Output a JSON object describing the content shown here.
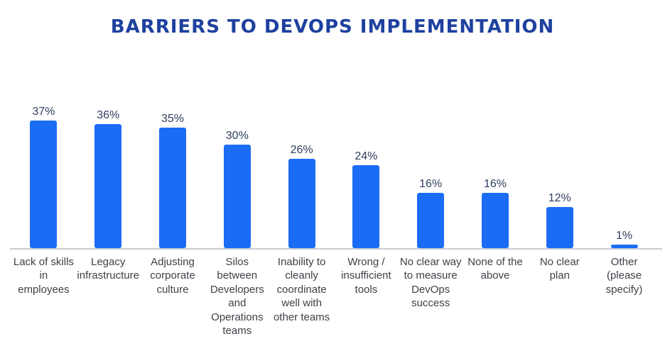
{
  "chart_data": {
    "type": "bar",
    "title": "BARRIERS TO DEVOPS IMPLEMENTATION",
    "categories": [
      "Lack of skills in employees",
      "Legacy infrastructure",
      "Adjusting corporate culture",
      "Silos between Developers and Operations teams",
      "Inability to cleanly coordinate well with other teams",
      "Wrong / insufficient tools",
      "No clear way to measure DevOps success",
      "None of the above",
      "No clear plan",
      "Other (please specify)"
    ],
    "values": [
      37,
      36,
      35,
      30,
      26,
      24,
      16,
      16,
      12,
      1
    ],
    "value_labels": [
      "37%",
      "36%",
      "35%",
      "30%",
      "26%",
      "24%",
      "16%",
      "16%",
      "12%",
      "1%"
    ],
    "unit": "%",
    "xlabel": "",
    "ylabel": "",
    "ylim": [
      0,
      38
    ],
    "grid": false,
    "legend": null,
    "colors": {
      "bar": "#1b6cf5",
      "title": "#1e419f",
      "value_label": "#2e3d5e",
      "category_label": "#3d4147",
      "baseline": "#c9cdd3",
      "background": "#ffffff"
    }
  }
}
